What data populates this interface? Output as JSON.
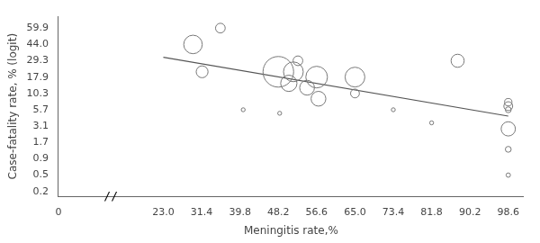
{
  "chart_data": {
    "type": "scatter",
    "x_label": "Meningitis rate,%",
    "y_label": "Case-fatality rate, % (logit)",
    "xlim": [
      0,
      102
    ],
    "xticks": [
      0,
      {
        "value": 23.0,
        "label": "23.0"
      },
      31.4,
      39.8,
      48.2,
      56.6,
      {
        "value": 65.0,
        "label": "65.0"
      },
      73.4,
      81.8,
      90.2,
      98.6
    ],
    "ylim": [
      0.15,
      75.0
    ],
    "yticks": [
      0.2,
      0.5,
      0.9,
      1.7,
      3.1,
      5.7,
      10.3,
      17.9,
      29.3,
      {
        "value": 44.0,
        "label": "44.0"
      },
      59.9
    ],
    "grid": false,
    "series": [
      {
        "type": "scatter",
        "marker": "circle",
        "color": "#777777",
        "x": [
          29.5,
          31.5,
          35.5,
          48.2,
          50.5,
          51.5,
          52.5,
          54.5,
          57.0,
          56.6,
          65.0,
          65.0,
          87.5,
          98.6,
          98.6,
          98.6,
          98.6,
          98.6,
          98.6,
          40.5,
          48.5,
          73.4,
          81.8
        ],
        "values": [
          44.0,
          21.0,
          59.9,
          21.0,
          14.5,
          21.0,
          29.3,
          12.5,
          8.5,
          17.9,
          17.9,
          10.3,
          29.3,
          7.5,
          6.5,
          5.7,
          2.8,
          1.3,
          0.5,
          5.7,
          5.0,
          5.7,
          3.5
        ],
        "sizes": [
          220,
          90,
          60,
          600,
          170,
          250,
          60,
          140,
          140,
          300,
          250,
          50,
          110,
          35,
          50,
          22,
          130,
          22,
          12,
          10,
          10,
          10,
          10
        ]
      },
      {
        "type": "line",
        "color": "#555555",
        "x": [
          23.0,
          98.6
        ],
        "values": [
          32.0,
          4.5
        ]
      }
    ],
    "annotations": [
      {
        "text": "//",
        "x": 11.5
      }
    ]
  }
}
